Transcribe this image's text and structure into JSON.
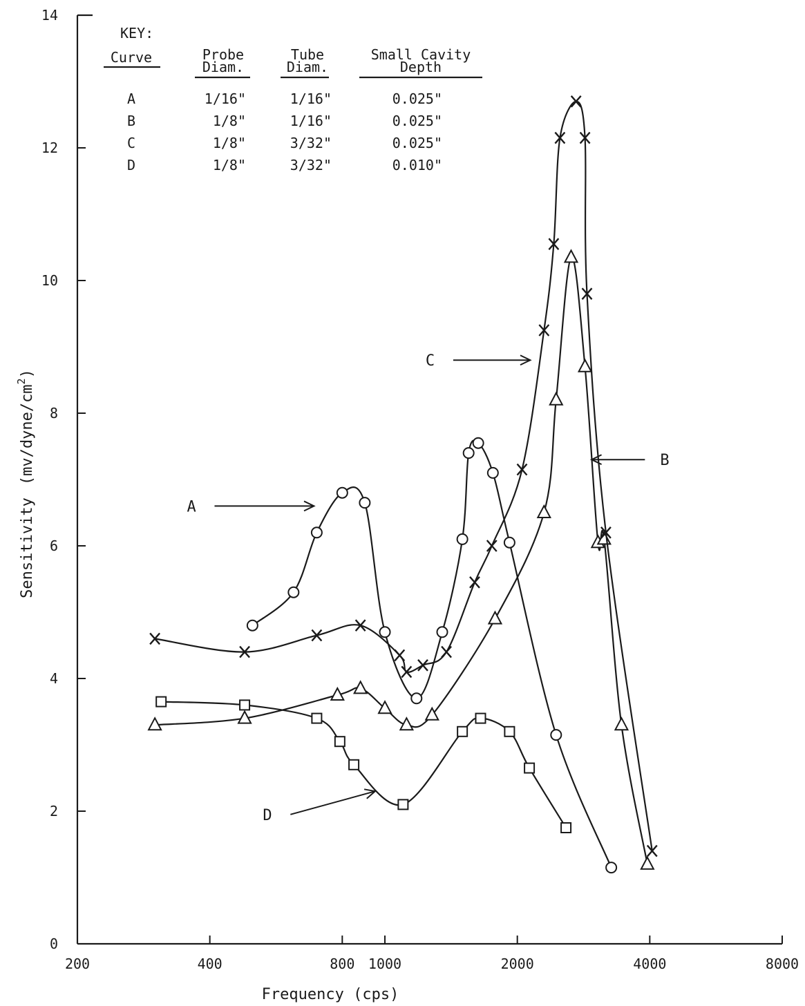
{
  "chart_data": {
    "type": "line",
    "xlabel": "Frequency (cps)",
    "ylabel": "Sensitivity",
    "ylabel_unit": "(mv/dyne/cm",
    "ylabel_unit_sup": "2",
    "ylabel_unit_close": ")",
    "x_scale": "log",
    "xlim": [
      200,
      8000
    ],
    "ylim": [
      0,
      14
    ],
    "x_ticks": [
      200,
      400,
      800,
      1000,
      2000,
      4000,
      8000
    ],
    "x_tick_labels": [
      "200",
      "400",
      "800",
      "1000",
      "2000",
      "4000",
      "8000"
    ],
    "y_ticks": [
      0,
      2,
      4,
      6,
      8,
      10,
      12,
      14
    ],
    "y_tick_labels": [
      "0",
      "2",
      "4",
      "6",
      "8",
      "10",
      "12",
      "14"
    ],
    "grid": false,
    "key": {
      "title": "KEY:",
      "headers": [
        "Curve",
        "Probe Diam.",
        "Tube Diam.",
        "Small Cavity Depth"
      ],
      "header_lines": [
        [
          "Curve"
        ],
        [
          "Probe",
          "Diam."
        ],
        [
          "Tube",
          "Diam."
        ],
        [
          "Small Cavity",
          "Depth"
        ]
      ],
      "rows": [
        [
          "A",
          "1/16\"",
          "1/16\"",
          "0.025\""
        ],
        [
          "B",
          "1/8\"",
          "1/16\"",
          "0.025\""
        ],
        [
          "C",
          "1/8\"",
          "3/32\"",
          "0.025\""
        ],
        [
          "D",
          "1/8\"",
          "3/32\"",
          "0.010\""
        ]
      ]
    },
    "series": [
      {
        "name": "A",
        "marker": "circle",
        "x": [
          500,
          620,
          700,
          800,
          900,
          1000,
          1180,
          1350,
          1500,
          1550,
          1630,
          1760,
          1920,
          2450,
          3270
        ],
        "y": [
          4.8,
          5.3,
          6.2,
          6.8,
          6.65,
          4.7,
          3.7,
          4.7,
          6.1,
          7.4,
          7.55,
          7.1,
          6.05,
          3.15,
          1.15
        ]
      },
      {
        "name": "B",
        "marker": "triangle",
        "x": [
          300,
          480,
          780,
          880,
          1000,
          1120,
          1280,
          1780,
          2300,
          2450,
          2650,
          2850,
          3050,
          3150,
          3450,
          3950
        ],
        "y": [
          3.3,
          3.4,
          3.75,
          3.85,
          3.55,
          3.3,
          3.45,
          4.9,
          6.5,
          8.2,
          10.35,
          8.7,
          6.05,
          6.1,
          3.3,
          1.2
        ]
      },
      {
        "name": "C",
        "marker": "x",
        "x": [
          300,
          480,
          700,
          880,
          1080,
          1120,
          1220,
          1380,
          1600,
          1750,
          2050,
          2300,
          2420,
          2500,
          2720,
          2850,
          2880,
          3180,
          4050
        ],
        "y": [
          4.6,
          4.4,
          4.65,
          4.8,
          4.35,
          4.1,
          4.2,
          4.4,
          5.45,
          6.0,
          7.15,
          9.25,
          10.55,
          12.15,
          12.7,
          12.15,
          9.8,
          6.2,
          1.4
        ]
      },
      {
        "name": "D",
        "marker": "square",
        "x": [
          310,
          480,
          700,
          790,
          850,
          1100,
          1500,
          1650,
          1920,
          2130,
          2580
        ],
        "y": [
          3.65,
          3.6,
          3.4,
          3.05,
          2.7,
          2.1,
          3.2,
          3.4,
          3.2,
          2.65,
          1.75
        ]
      }
    ],
    "annotations": [
      {
        "label": "A",
        "x": 410,
        "y": 6.6,
        "target_x": 690,
        "target_y": 6.6,
        "label_side": "left"
      },
      {
        "label": "C",
        "x": 1430,
        "y": 8.8,
        "target_x": 2140,
        "target_y": 8.8,
        "label_side": "left"
      },
      {
        "label": "B",
        "x": 3900,
        "y": 7.3,
        "target_x": 2950,
        "target_y": 7.3,
        "label_side": "right"
      },
      {
        "label": "D",
        "x": 610,
        "y": 1.95,
        "target_x": 950,
        "target_y": 2.3,
        "label_side": "left"
      }
    ]
  }
}
